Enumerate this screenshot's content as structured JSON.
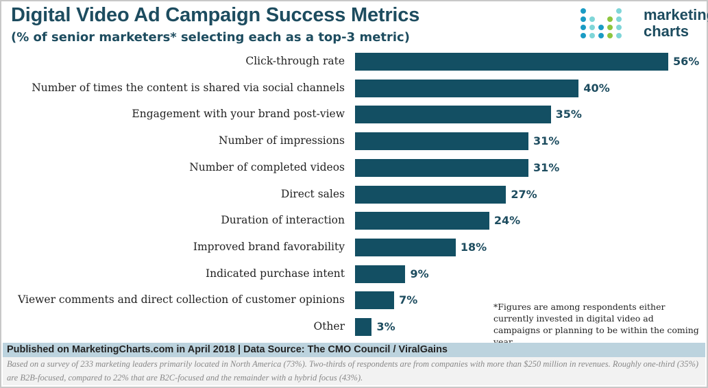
{
  "header": {
    "title": "Digital Video Ad Campaign Success Metrics",
    "subtitle": "(% of senior marketers* selecting each as a top-3 metric)"
  },
  "logo": {
    "line1": "marketing",
    "line2": "charts",
    "colors": [
      "#1a9bc4",
      "#7fd6d8",
      "#8dc63f"
    ]
  },
  "chart_data": {
    "type": "bar",
    "orientation": "horizontal",
    "title": "Digital Video Ad Campaign Success Metrics",
    "subtitle": "(% of senior marketers* selecting each as a top-3 metric)",
    "categories": [
      "Click-through rate",
      "Number of times the content is shared via social channels",
      "Engagement with your brand post-view",
      "Number of impressions",
      "Number of completed videos",
      "Direct sales",
      "Duration of interaction",
      "Improved brand favorability",
      "Indicated purchase intent",
      "Viewer comments and direct collection of customer opinions",
      "Other"
    ],
    "values": [
      56,
      40,
      35,
      31,
      31,
      27,
      24,
      18,
      9,
      7,
      3
    ],
    "labels": [
      "56%",
      "40%",
      "35%",
      "31%",
      "31%",
      "27%",
      "24%",
      "18%",
      "9%",
      "7%",
      "3%"
    ],
    "xlim": [
      0,
      56
    ],
    "grid": false,
    "bar_color": "#134f63"
  },
  "footnote": "*Figures are among respondents either currently invested in digital video ad campaigns or planning to be within the coming year",
  "footer": {
    "published": "Published on MarketingCharts.com in April 2018 | Data Source: The CMO Council / ViralGains",
    "basis": "Based on a survey of 233 marketing leaders primarily located in North America (73%). Two-thirds of respondents are from companies with more than $250 million in revenues. Roughly one-third (35%) are B2B-focused, compared to 22% that are B2C-focused and the remainder with a hybrid focus (43%)."
  }
}
